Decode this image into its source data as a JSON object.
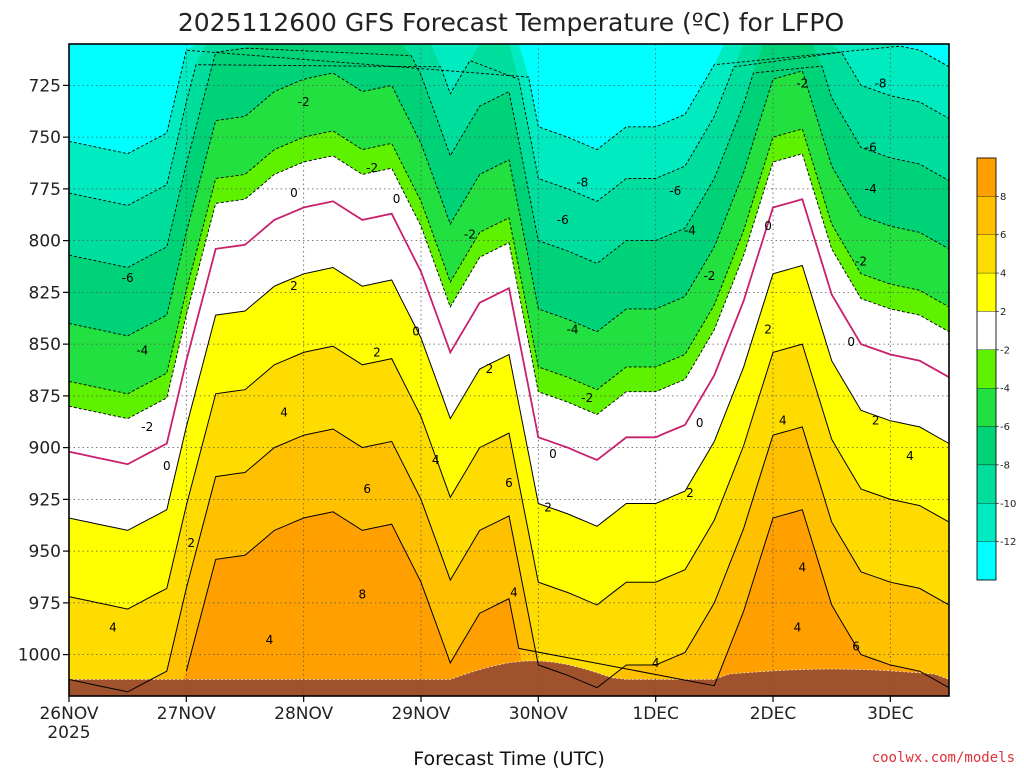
{
  "title": "2025112600 GFS Forecast Temperature (ºC) for LFPO",
  "xlabel": "Forecast Time (UTC)",
  "credit": "coolwx.com/models",
  "chart_data": {
    "type": "contour",
    "title": "2025112600 GFS Forecast Temperature (ºC) for LFPO",
    "xlabel": "Forecast Time (UTC)",
    "ylabel": "",
    "x_range_hours": [
      0,
      180
    ],
    "ylim": [
      1020,
      705
    ],
    "x_ticks": [
      {
        "hour": 0,
        "label": "26NOV",
        "sub": "2025"
      },
      {
        "hour": 24,
        "label": "27NOV"
      },
      {
        "hour": 48,
        "label": "28NOV"
      },
      {
        "hour": 72,
        "label": "29NOV"
      },
      {
        "hour": 96,
        "label": "30NOV"
      },
      {
        "hour": 120,
        "label": "1DEC"
      },
      {
        "hour": 144,
        "label": "2DEC"
      },
      {
        "hour": 168,
        "label": "3DEC"
      }
    ],
    "y_ticks": [
      725,
      750,
      775,
      800,
      825,
      850,
      875,
      900,
      925,
      950,
      975,
      1000
    ],
    "grid": "dotted",
    "colorbar": {
      "placement": "right",
      "levels": [
        -14,
        -12,
        -10,
        -8,
        -6,
        -4,
        -2,
        2,
        4,
        6,
        8,
        10
      ],
      "labels": [
        "8",
        "6",
        "4",
        "2",
        "-2",
        "-4",
        "-6",
        "-8",
        "-10",
        "-12"
      ],
      "colors": [
        "#00ffff",
        "#00ecc0",
        "#00de9e",
        "#00d278",
        "#22e040",
        "#5ef200",
        "#ffffff",
        "#ffff00",
        "#ffdc00",
        "#ffc000",
        "#ffa000"
      ]
    },
    "isotherm_0C": [
      {
        "hour": 0,
        "p": 902
      },
      {
        "hour": 12,
        "p": 908
      },
      {
        "hour": 20,
        "p": 898
      },
      {
        "hour": 24,
        "p": 858
      },
      {
        "hour": 30,
        "p": 804
      },
      {
        "hour": 36,
        "p": 802
      },
      {
        "hour": 42,
        "p": 790
      },
      {
        "hour": 48,
        "p": 784
      },
      {
        "hour": 54,
        "p": 781
      },
      {
        "hour": 60,
        "p": 790
      },
      {
        "hour": 66,
        "p": 787
      },
      {
        "hour": 72,
        "p": 815
      },
      {
        "hour": 78,
        "p": 854
      },
      {
        "hour": 84,
        "p": 830
      },
      {
        "hour": 90,
        "p": 823
      },
      {
        "hour": 96,
        "p": 895
      },
      {
        "hour": 102,
        "p": 900
      },
      {
        "hour": 108,
        "p": 906
      },
      {
        "hour": 114,
        "p": 895
      },
      {
        "hour": 120,
        "p": 895
      },
      {
        "hour": 126,
        "p": 889
      },
      {
        "hour": 132,
        "p": 865
      },
      {
        "hour": 138,
        "p": 829
      },
      {
        "hour": 144,
        "p": 784
      },
      {
        "hour": 150,
        "p": 780
      },
      {
        "hour": 156,
        "p": 826
      },
      {
        "hour": 162,
        "p": 850
      },
      {
        "hour": 168,
        "p": 855
      },
      {
        "hour": 174,
        "p": 858
      },
      {
        "hour": 180,
        "p": 866
      }
    ],
    "contour_labels": [
      {
        "text": "-2",
        "hour": 62,
        "p": 765
      },
      {
        "text": "-2",
        "hour": 48,
        "p": 733
      },
      {
        "text": "-8",
        "hour": 105,
        "p": 772
      },
      {
        "text": "-6",
        "hour": 124,
        "p": 776
      },
      {
        "text": "-6",
        "hour": 101,
        "p": 790
      },
      {
        "text": "-4",
        "hour": 127,
        "p": 795
      },
      {
        "text": "-2",
        "hour": 82,
        "p": 797
      },
      {
        "text": "-2",
        "hour": 131,
        "p": 817
      },
      {
        "text": "-4",
        "hour": 103,
        "p": 843
      },
      {
        "text": "-2",
        "hour": 106,
        "p": 876
      },
      {
        "text": "-6",
        "hour": 12,
        "p": 818
      },
      {
        "text": "-4",
        "hour": 15,
        "p": 853
      },
      {
        "text": "-2",
        "hour": 16,
        "p": 890
      },
      {
        "text": "-2",
        "hour": 162,
        "p": 810
      },
      {
        "text": "-4",
        "hour": 164,
        "p": 775
      },
      {
        "text": "-6",
        "hour": 164,
        "p": 755
      },
      {
        "text": "-8",
        "hour": 166,
        "p": 724
      },
      {
        "text": "-2",
        "hour": 150,
        "p": 724
      },
      {
        "text": "0",
        "hour": 46,
        "p": 777
      },
      {
        "text": "0",
        "hour": 67,
        "p": 780
      },
      {
        "text": "0",
        "hour": 71,
        "p": 844
      },
      {
        "text": "0",
        "hour": 20,
        "p": 909
      },
      {
        "text": "0",
        "hour": 99,
        "p": 903
      },
      {
        "text": "0",
        "hour": 129,
        "p": 888
      },
      {
        "text": "0",
        "hour": 143,
        "p": 793
      },
      {
        "text": "0",
        "hour": 160,
        "p": 849
      },
      {
        "text": "2",
        "hour": 46,
        "p": 822
      },
      {
        "text": "2",
        "hour": 63,
        "p": 854
      },
      {
        "text": "2",
        "hour": 86,
        "p": 862
      },
      {
        "text": "2",
        "hour": 98,
        "p": 929
      },
      {
        "text": "2",
        "hour": 25,
        "p": 946
      },
      {
        "text": "2",
        "hour": 127,
        "p": 922
      },
      {
        "text": "2",
        "hour": 143,
        "p": 843
      },
      {
        "text": "2",
        "hour": 165,
        "p": 887
      },
      {
        "text": "4",
        "hour": 44,
        "p": 883
      },
      {
        "text": "4",
        "hour": 75,
        "p": 906
      },
      {
        "text": "4",
        "hour": 9,
        "p": 987
      },
      {
        "text": "4",
        "hour": 41,
        "p": 993
      },
      {
        "text": "4",
        "hour": 91,
        "p": 970
      },
      {
        "text": "4",
        "hour": 120,
        "p": 1004
      },
      {
        "text": "4",
        "hour": 146,
        "p": 887
      },
      {
        "text": "4",
        "hour": 172,
        "p": 904
      },
      {
        "text": "4",
        "hour": 150,
        "p": 958
      },
      {
        "text": "4",
        "hour": 149,
        "p": 987
      },
      {
        "text": "6",
        "hour": 61,
        "p": 920
      },
      {
        "text": "6",
        "hour": 90,
        "p": 917
      },
      {
        "text": "6",
        "hour": 161,
        "p": 996
      },
      {
        "text": "8",
        "hour": 60,
        "p": 971
      }
    ]
  }
}
